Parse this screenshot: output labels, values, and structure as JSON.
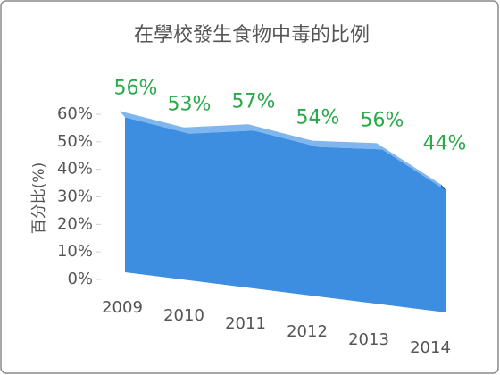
{
  "chart_data": {
    "type": "area3d",
    "title": "在學校發生食物中毒的比例",
    "y_label": "百分比(%)",
    "categories": [
      "2009",
      "2010",
      "2011",
      "2012",
      "2013",
      "2014"
    ],
    "values": [
      56,
      53,
      57,
      54,
      56,
      44
    ],
    "value_labels": [
      "56%",
      "53%",
      "57%",
      "54%",
      "56%",
      "44%"
    ],
    "color": "#3d8de0",
    "ylim": [
      0,
      60
    ],
    "yticks": [
      {
        "value": 0,
        "label": "0%"
      },
      {
        "value": 10,
        "label": "10%"
      },
      {
        "value": 20,
        "label": "20%"
      },
      {
        "value": 30,
        "label": "30%"
      },
      {
        "value": 40,
        "label": "40%"
      },
      {
        "value": 50,
        "label": "50%"
      },
      {
        "value": 60,
        "label": "60%"
      }
    ]
  }
}
